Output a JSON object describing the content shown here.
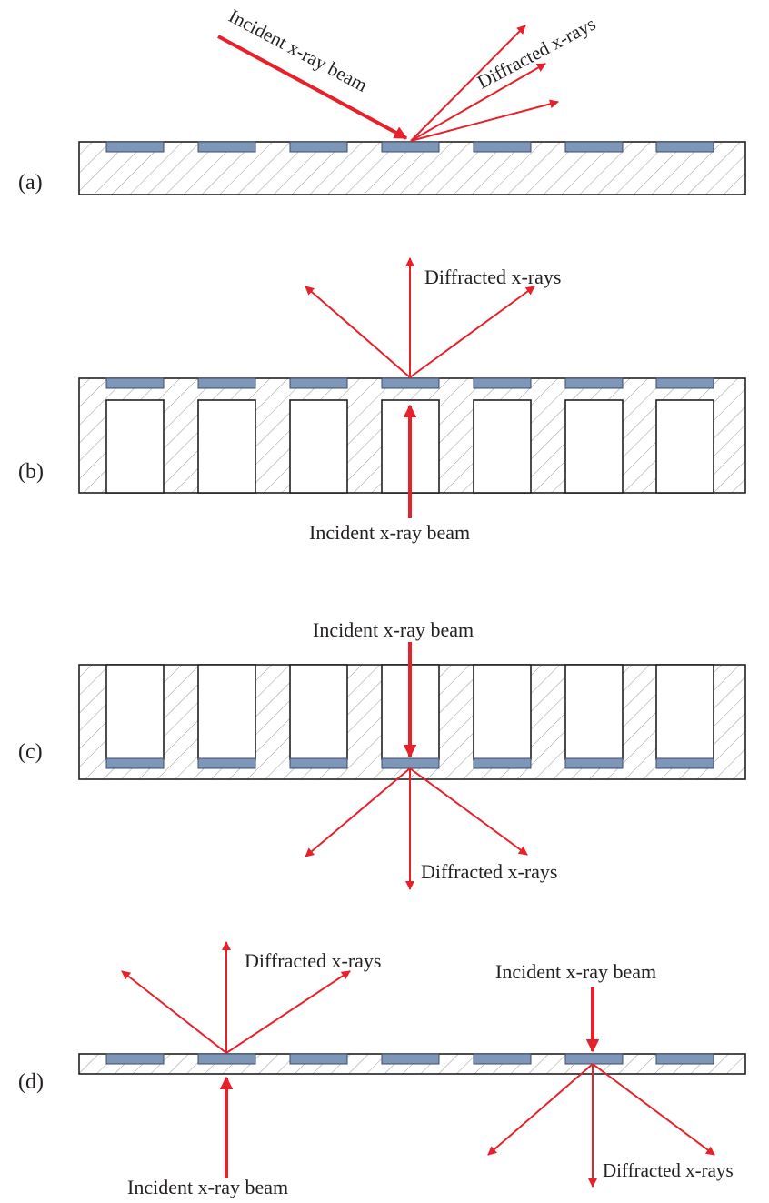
{
  "figure": {
    "panels": [
      {
        "id": "a",
        "tag": "(a)",
        "incident_label": "Incident x-ray beam",
        "diffracted_label": "Diffracted x-rays"
      },
      {
        "id": "b",
        "tag": "(b)",
        "incident_label": "Incident x-ray beam",
        "diffracted_label": "Diffracted x-rays"
      },
      {
        "id": "c",
        "tag": "(c)",
        "incident_label": "Incident x-ray beam",
        "diffracted_label": "Diffracted x-rays"
      },
      {
        "id": "d",
        "tag": "(d)",
        "incident_left_label": "Incident x-ray beam",
        "diffracted_left_label": "Diffracted x-rays",
        "incident_right_label": "Incident x-ray beam",
        "diffracted_right_label": "Diffracted x-rays"
      }
    ]
  },
  "colors": {
    "beam": "#e8202a",
    "sample": "#7e96b8",
    "outline": "#231f20",
    "hatch": "#9a9a9a"
  }
}
